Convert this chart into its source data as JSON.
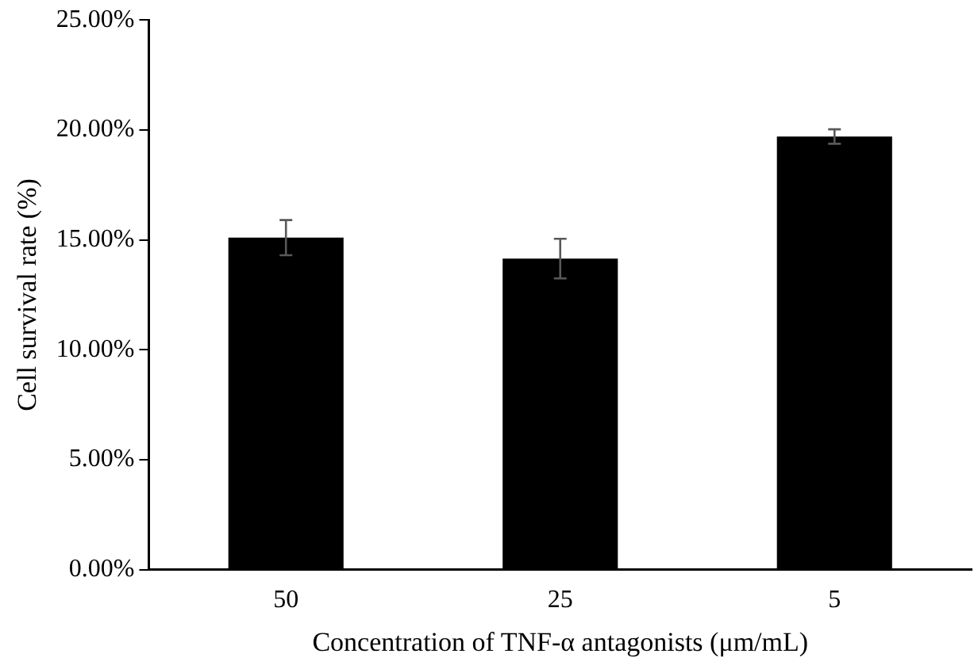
{
  "chart_data": {
    "type": "bar",
    "xlabel": "Concentration of TNF-α antagonists (μm/mL)",
    "ylabel": "Cell survival rate (%)",
    "categories": [
      "50",
      "25",
      "5"
    ],
    "values": [
      15.1,
      14.15,
      19.7
    ],
    "errors": [
      0.8,
      0.9,
      0.33
    ],
    "color": "#000000",
    "ylim": [
      0,
      25
    ],
    "yticks": [
      {
        "value": 0,
        "label": "0.00%"
      },
      {
        "value": 5,
        "label": "5.00%"
      },
      {
        "value": 10,
        "label": "10.00%"
      },
      {
        "value": 15,
        "label": "15.00%"
      },
      {
        "value": 20,
        "label": "20.00%"
      },
      {
        "value": 25,
        "label": "25.00%"
      }
    ],
    "grid": false,
    "legend": false
  }
}
